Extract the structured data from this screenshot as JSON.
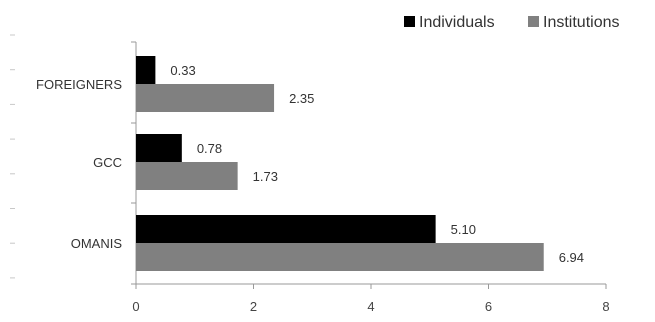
{
  "chart_data": {
    "type": "bar",
    "orientation": "horizontal",
    "categories": [
      "FOREIGNERS",
      "GCC",
      "OMANIS"
    ],
    "series": [
      {
        "name": "Individuals",
        "values": [
          0.33,
          0.78,
          5.1
        ],
        "labels": [
          "0.33",
          "0.78",
          "5.10"
        ],
        "color": "#000000"
      },
      {
        "name": "Institutions",
        "values": [
          2.35,
          1.73,
          6.94
        ],
        "labels": [
          "2.35",
          "1.73",
          "6.94"
        ],
        "color": "#808080"
      }
    ],
    "xlim": [
      0,
      8
    ],
    "xticks": [
      0,
      2,
      4,
      6,
      8
    ],
    "grid": false,
    "legend_position": "top-right"
  }
}
